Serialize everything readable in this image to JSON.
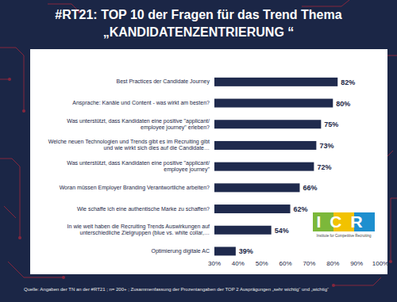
{
  "chart_data": {
    "type": "bar",
    "orientation": "horizontal",
    "title": "#RT21: TOP 10 der Fragen für das Trend Thema",
    "subtitle": "„KANDIDATENZENTRIERUNG “",
    "categories": [
      "Best Practices der Candidate Journey",
      "Ansprache: Kanäle und Content - was wirkt am besten?",
      "Was unterstützt, dass Kandidaten eine positive \"applicant/ employee journey\" erleben?",
      "Welche neuen Technologien und Trends gibt es im Recruiting gibt und wie wirkt sich dies auf die Candidate…",
      "Was unterstützt, dass Kandidaten eine positive \"applicant/ employee journey\"",
      "Woran müssen Employer Branding Verantwortliche arbeiten?",
      "Wie schaffe ich eine authentische Marke zu schaffen?",
      "In wie weit haben die Recruiting Trends Auswirkungen auf unterschiedliche Zielgruppen (blue vs. white collar,…",
      "Optimierung digitale AC"
    ],
    "values": [
      82,
      80,
      75,
      73,
      72,
      66,
      62,
      54,
      39
    ],
    "value_labels": [
      "82%",
      "80%",
      "75%",
      "73%",
      "72%",
      "66%",
      "62%",
      "54%",
      "39%"
    ],
    "data_labels": true,
    "color": "#1f2a4d",
    "xlim": [
      30,
      100
    ],
    "xticks": [
      {
        "value": 30,
        "label": "30%"
      },
      {
        "value": 40,
        "label": "40%"
      },
      {
        "value": 50,
        "label": "50%"
      },
      {
        "value": 60,
        "label": "60%"
      },
      {
        "value": 70,
        "label": "70%"
      },
      {
        "value": 80,
        "label": "80%"
      },
      {
        "value": 90,
        "label": "90%"
      },
      {
        "value": 100,
        "label": "100%"
      }
    ],
    "grid": false,
    "annotations": [
      "Quelle: Angaben der TN an der #RT21 ; n= 200+ ; Zusammenfassung der Prozentangaben  der TOP 2 Ausprägungen „sehr wichtig“ und „wichtig“",
      "ICR",
      "Institute for Competitive Recruiting"
    ]
  }
}
